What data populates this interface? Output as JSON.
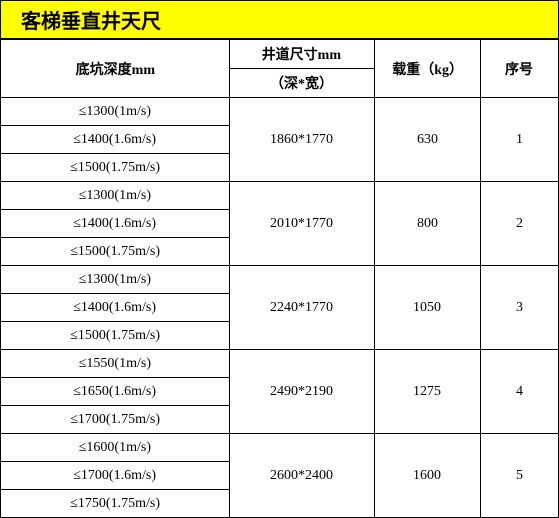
{
  "title": "客梯垂直井天尺",
  "header": {
    "col_seq": "序号",
    "col_load": "载重（kg）",
    "col_shaft": "井道尺寸mm",
    "col_shaft_sub": "（深*宽）",
    "col_pit": "底坑深度mm"
  },
  "rows": [
    {
      "seq": "1",
      "load": "630",
      "shaft": "1860*1770",
      "pits": [
        "≤1300(1m/s)",
        "≤1400(1.6m/s)",
        "≤1500(1.75m/s)"
      ]
    },
    {
      "seq": "2",
      "load": "800",
      "shaft": "2010*1770",
      "pits": [
        "≤1300(1m/s)",
        "≤1400(1.6m/s)",
        "≤1500(1.75m/s)"
      ]
    },
    {
      "seq": "3",
      "load": "1050",
      "shaft": "2240*1770",
      "pits": [
        "≤1300(1m/s)",
        "≤1400(1.6m/s)",
        "≤1500(1.75m/s)"
      ]
    },
    {
      "seq": "4",
      "load": "1275",
      "shaft": "2490*2190",
      "pits": [
        "≤1550(1m/s)",
        "≤1650(1.6m/s)",
        "≤1700(1.75m/s)"
      ]
    },
    {
      "seq": "5",
      "load": "1600",
      "shaft": "2600*2400",
      "pits": [
        "≤1600(1m/s)",
        "≤1700(1.6m/s)",
        "≤1750(1.75m/s)"
      ]
    }
  ],
  "style": {
    "title_bg": "#ffff00",
    "border_color": "#000000",
    "font_family": "SimSun",
    "cell_fontsize": 14,
    "title_fontsize": 20,
    "col_widths_pct": [
      14,
      19,
      26,
      41
    ]
  }
}
